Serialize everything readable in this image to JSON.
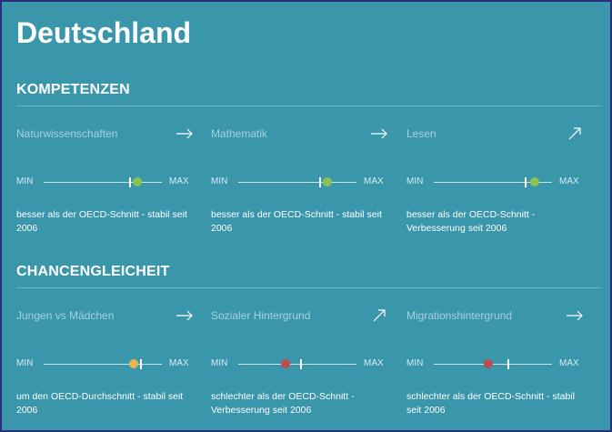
{
  "page": {
    "title": "Deutschland"
  },
  "labels": {
    "min": "MIN",
    "max": "MAX"
  },
  "colors": {
    "background": "#3a96ab",
    "above_average": "#8cc34e",
    "average": "#e8b64a",
    "below_average": "#c34a4f"
  },
  "sections": [
    {
      "title": "KOMPETENZEN",
      "items": [
        {
          "label": "Naturwissenschaften",
          "trend_icon": "arrow-right-icon",
          "avg_fraction": 0.73,
          "value_fraction": 0.79,
          "status": "above_average",
          "description": "besser als der OECD-Schnitt - stabil seit 2006"
        },
        {
          "label": "Mathematik",
          "trend_icon": "arrow-right-icon",
          "avg_fraction": 0.69,
          "value_fraction": 0.75,
          "status": "above_average",
          "description": "besser als der OECD-Schnitt - stabil seit 2006"
        },
        {
          "label": "Lesen",
          "trend_icon": "arrow-up-right-icon",
          "avg_fraction": 0.78,
          "value_fraction": 0.85,
          "status": "above_average",
          "description": "besser als der OECD-Schnitt - Verbesserung seit 2006"
        }
      ]
    },
    {
      "title": "CHANCENGLEICHEIT",
      "items": [
        {
          "label": "Jungen vs Mädchen",
          "trend_icon": "arrow-right-icon",
          "avg_fraction": 0.82,
          "value_fraction": 0.76,
          "status": "average",
          "description": "um den OECD-Durchschnitt - stabil seit 2006"
        },
        {
          "label": "Sozialer Hintergrund",
          "trend_icon": "arrow-up-right-icon",
          "avg_fraction": 0.53,
          "value_fraction": 0.4,
          "status": "below_average",
          "description": "schlechter als der OECD-Schnitt - Verbesserung seit 2006"
        },
        {
          "label": "Migrationshintergrund",
          "trend_icon": "arrow-right-icon",
          "avg_fraction": 0.63,
          "value_fraction": 0.46,
          "status": "below_average",
          "description": "schlechter als der OECD-Schnitt - stabil seit 2006"
        }
      ]
    }
  ]
}
